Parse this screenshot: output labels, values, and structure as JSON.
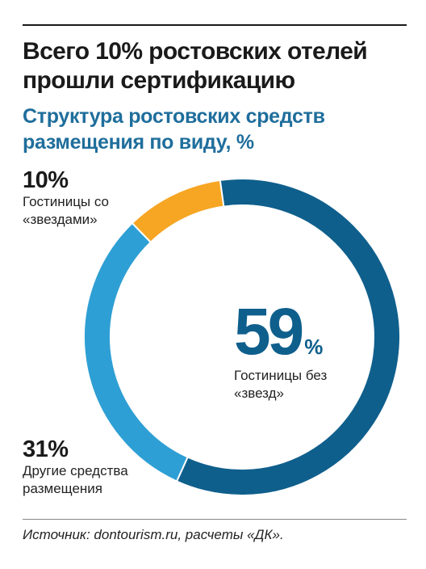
{
  "header": {
    "title": "Всего 10% ростовских отелей прошли сертификацию",
    "subtitle": "Структура ростовских средств размещения по виду, %"
  },
  "chart_data": {
    "type": "pie",
    "donut": true,
    "title": "Структура ростовских средств размещения по виду, %",
    "unit": "%",
    "slices": [
      {
        "value": 59,
        "label": "Гостиницы без «звезд»",
        "percent_text": "59",
        "percent_sign": "%",
        "color": "#0f5f8c"
      },
      {
        "value": 31,
        "label": "Другие средства размещения",
        "percent_text": "31%",
        "color": "#2e9fd4"
      },
      {
        "value": 10,
        "label": "Гостиницы со «звездами»",
        "percent_text": "10%",
        "color": "#f6a623"
      }
    ]
  },
  "callouts": {
    "hotels_stars": {
      "pct": "10%",
      "label": "Гостиницы со\n«звездами»"
    },
    "other": {
      "pct": "31%",
      "label": "Другие средства\nразмещения"
    },
    "no_stars": {
      "pct": "59",
      "sign": "%",
      "label": "Гостиницы без\n«звезд»"
    }
  },
  "footer": {
    "source": "Источник: dontourism.ru, расчеты «ДК»."
  }
}
